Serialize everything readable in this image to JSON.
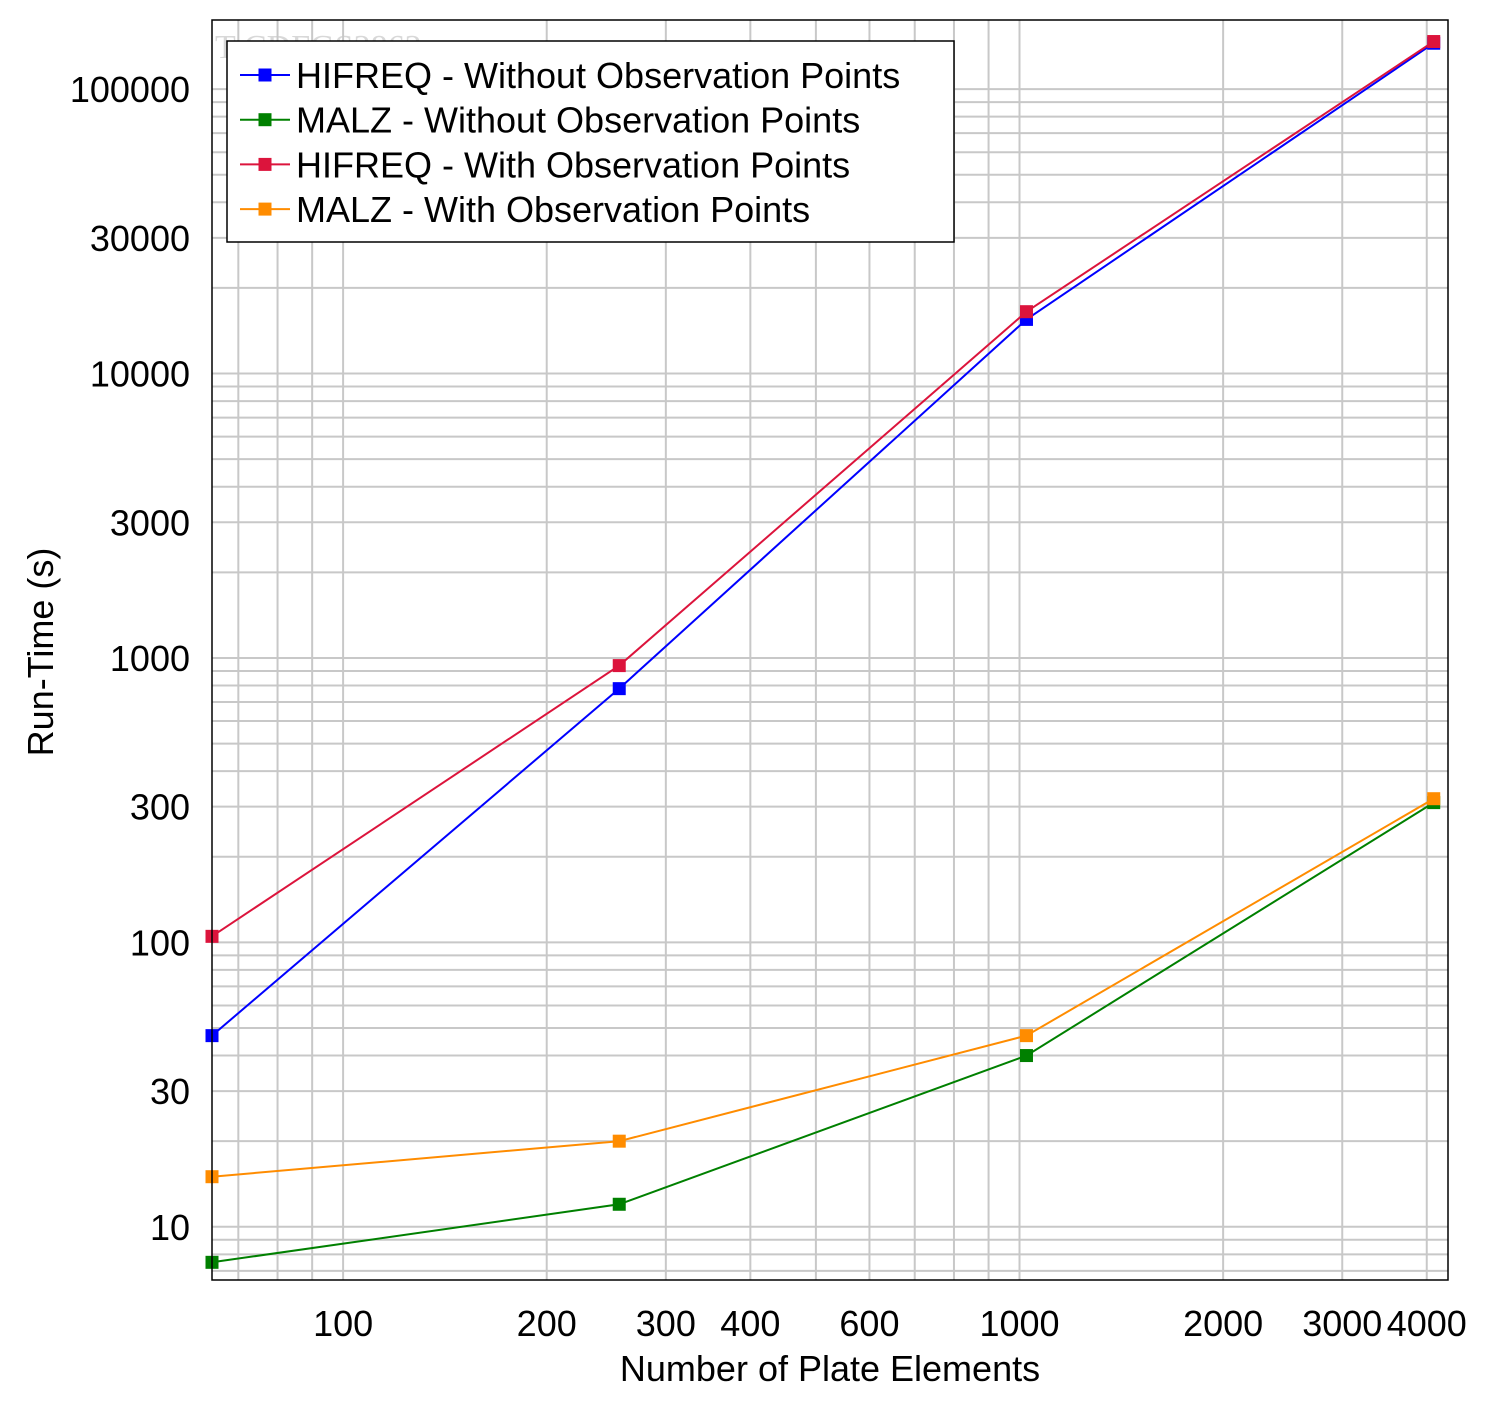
{
  "chart_data": {
    "type": "line",
    "title": "",
    "watermark": "T-CDFGS2862",
    "xlabel": "Number of Plate Elements",
    "ylabel": "Run-Time (s)",
    "x_scale": "log",
    "y_scale": "log",
    "xlim": [
      64,
      4300
    ],
    "ylim": [
      6.5,
      175000
    ],
    "grid": true,
    "legend_position": "top-left",
    "x_ticks": [
      100,
      200,
      300,
      400,
      600,
      1000,
      2000,
      3000,
      4000
    ],
    "x_tick_labels": [
      "100",
      "200",
      "300",
      "400",
      "600",
      "1000",
      "2000",
      "3000",
      "4000"
    ],
    "y_ticks": [
      10,
      30,
      100,
      300,
      1000,
      3000,
      10000,
      30000,
      100000
    ],
    "y_tick_labels": [
      "10",
      "30",
      "100",
      "300",
      "1000",
      "3000",
      "10000",
      "30000",
      "100000"
    ],
    "x": [
      64,
      256,
      1024,
      4096
    ],
    "series": [
      {
        "name": "HIFREQ - Without Observation Points",
        "color": "#0000ff",
        "values": [
          47,
          780,
          15500,
          145000
        ]
      },
      {
        "name": "MALZ - Without Observation Points",
        "color": "#008000",
        "values": [
          7.5,
          12,
          40,
          310
        ]
      },
      {
        "name": "HIFREQ - With Observation Points",
        "color": "#dc143c",
        "values": [
          105,
          940,
          16500,
          147000
        ]
      },
      {
        "name": "MALZ - With Observation Points",
        "color": "#ff8c00",
        "values": [
          15,
          20,
          47,
          320
        ]
      }
    ]
  }
}
